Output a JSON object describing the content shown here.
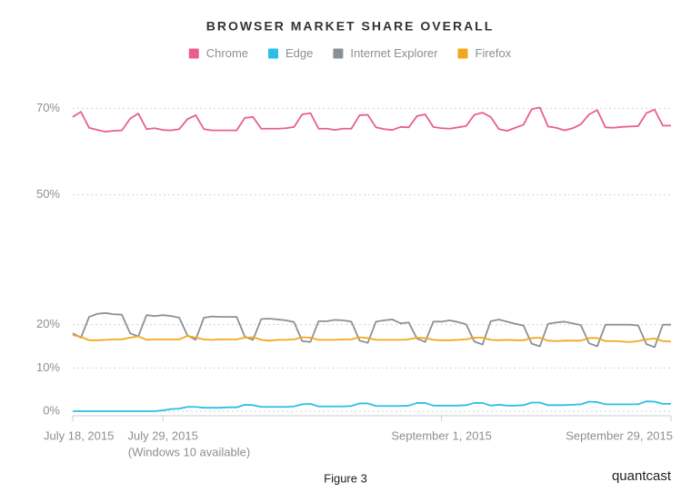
{
  "chart_data": {
    "type": "line",
    "title": "BROWSER MARKET SHARE OVERALL",
    "annotation": "(Windows 10 available)",
    "caption": "Figure 3",
    "brand": "quantcast",
    "x": [
      "2015-07-18",
      "2015-07-19",
      "2015-07-20",
      "2015-07-21",
      "2015-07-22",
      "2015-07-23",
      "2015-07-24",
      "2015-07-25",
      "2015-07-26",
      "2015-07-27",
      "2015-07-28",
      "2015-07-29",
      "2015-07-30",
      "2015-07-31",
      "2015-08-01",
      "2015-08-02",
      "2015-08-03",
      "2015-08-04",
      "2015-08-05",
      "2015-08-06",
      "2015-08-07",
      "2015-08-08",
      "2015-08-09",
      "2015-08-10",
      "2015-08-11",
      "2015-08-12",
      "2015-08-13",
      "2015-08-14",
      "2015-08-15",
      "2015-08-16",
      "2015-08-17",
      "2015-08-18",
      "2015-08-19",
      "2015-08-20",
      "2015-08-21",
      "2015-08-22",
      "2015-08-23",
      "2015-08-24",
      "2015-08-25",
      "2015-08-26",
      "2015-08-27",
      "2015-08-28",
      "2015-08-29",
      "2015-08-30",
      "2015-08-31",
      "2015-09-01",
      "2015-09-02",
      "2015-09-03",
      "2015-09-04",
      "2015-09-05",
      "2015-09-06",
      "2015-09-07",
      "2015-09-08",
      "2015-09-09",
      "2015-09-10",
      "2015-09-11",
      "2015-09-12",
      "2015-09-13",
      "2015-09-14",
      "2015-09-15",
      "2015-09-16",
      "2015-09-17",
      "2015-09-18",
      "2015-09-19",
      "2015-09-20",
      "2015-09-21",
      "2015-09-22",
      "2015-09-23",
      "2015-09-24",
      "2015-09-25",
      "2015-09-26",
      "2015-09-27",
      "2015-09-28",
      "2015-09-29"
    ],
    "series": [
      {
        "name": "Chrome",
        "color": "#e8608a",
        "values": [
          68.0,
          69.2,
          65.5,
          65.0,
          64.6,
          64.8,
          64.9,
          67.6,
          68.8,
          65.2,
          65.4,
          65.0,
          64.9,
          65.2,
          67.5,
          68.4,
          65.2,
          64.9,
          64.9,
          64.9,
          64.9,
          67.8,
          68.0,
          65.3,
          65.3,
          65.3,
          65.4,
          65.7,
          68.6,
          68.9,
          65.3,
          65.3,
          65.0,
          65.3,
          65.3,
          68.4,
          68.5,
          65.6,
          65.2,
          65.0,
          65.7,
          65.6,
          68.2,
          68.6,
          65.7,
          65.4,
          65.3,
          65.6,
          65.9,
          68.5,
          69.0,
          68.0,
          65.2,
          64.8,
          65.5,
          66.2,
          69.8,
          70.2,
          65.8,
          65.5,
          64.9,
          65.4,
          66.3,
          68.6,
          69.6,
          65.6,
          65.5,
          65.7,
          65.8,
          65.9,
          68.9,
          69.7,
          66.0,
          66.0
        ]
      },
      {
        "name": "Edge",
        "color": "#2bbfe6",
        "values": [
          0,
          0,
          0,
          0,
          0,
          0,
          0,
          0,
          0,
          0,
          0,
          0.2,
          0.5,
          0.6,
          1.0,
          1.0,
          0.8,
          0.8,
          0.8,
          0.9,
          0.9,
          1.5,
          1.4,
          1.0,
          1.0,
          1.0,
          1.0,
          1.1,
          1.6,
          1.7,
          1.1,
          1.1,
          1.1,
          1.1,
          1.2,
          1.8,
          1.8,
          1.2,
          1.2,
          1.2,
          1.2,
          1.3,
          1.9,
          1.9,
          1.3,
          1.3,
          1.3,
          1.3,
          1.4,
          1.9,
          1.9,
          1.3,
          1.5,
          1.3,
          1.3,
          1.4,
          2.0,
          2.0,
          1.4,
          1.4,
          1.4,
          1.5,
          1.6,
          2.2,
          2.1,
          1.6,
          1.6,
          1.6,
          1.6,
          1.6,
          2.3,
          2.2,
          1.7,
          1.7
        ]
      },
      {
        "name": "Internet Explorer",
        "color": "#8a9196",
        "values": [
          18.0,
          17.0,
          21.8,
          22.5,
          22.7,
          22.4,
          22.3,
          18.0,
          17.3,
          22.2,
          22.0,
          22.2,
          22.0,
          21.6,
          17.5,
          16.5,
          21.6,
          21.9,
          21.8,
          21.8,
          21.8,
          17.2,
          16.5,
          21.3,
          21.4,
          21.2,
          21.0,
          20.6,
          16.2,
          16.0,
          20.8,
          20.8,
          21.1,
          21.0,
          20.7,
          16.3,
          15.8,
          20.7,
          21.0,
          21.2,
          20.3,
          20.5,
          16.8,
          16.0,
          20.7,
          20.7,
          21.0,
          20.6,
          20.1,
          16.1,
          15.4,
          20.8,
          21.2,
          20.7,
          20.2,
          19.8,
          15.6,
          15.0,
          20.2,
          20.5,
          20.7,
          20.3,
          19.9,
          15.7,
          15.0,
          20.0,
          20.0,
          20.0,
          20.0,
          19.8,
          15.5,
          14.8,
          20.0,
          20.0
        ]
      },
      {
        "name": "Firefox",
        "color": "#f2a81d",
        "values": [
          17.6,
          17.2,
          16.4,
          16.4,
          16.5,
          16.6,
          16.6,
          17.0,
          17.3,
          16.5,
          16.6,
          16.6,
          16.6,
          16.6,
          17.4,
          17.0,
          16.6,
          16.5,
          16.6,
          16.6,
          16.6,
          17.0,
          17.1,
          16.5,
          16.3,
          16.5,
          16.5,
          16.6,
          17.1,
          17.0,
          16.5,
          16.5,
          16.5,
          16.6,
          16.6,
          17.1,
          16.9,
          16.5,
          16.5,
          16.5,
          16.5,
          16.6,
          17.0,
          16.9,
          16.5,
          16.4,
          16.4,
          16.5,
          16.6,
          17.0,
          17.0,
          16.5,
          16.4,
          16.5,
          16.4,
          16.4,
          16.9,
          17.0,
          16.3,
          16.2,
          16.3,
          16.3,
          16.3,
          16.9,
          16.9,
          16.2,
          16.2,
          16.1,
          16.0,
          16.2,
          16.6,
          16.8,
          16.2,
          16.1
        ]
      }
    ],
    "xlim": [
      "2015-07-18",
      "2015-09-29"
    ],
    "xticks": [
      {
        "value": "2015-07-18",
        "label": "July 18, 2015"
      },
      {
        "value": "2015-07-29",
        "label": "July 29, 2015"
      },
      {
        "value": "2015-09-01",
        "label": "September 1, 2015"
      },
      {
        "value": "2015-09-29",
        "label": "September 29, 2015"
      }
    ],
    "ylim": [
      0,
      75
    ],
    "yticks": [
      {
        "value": 0,
        "label": "0%"
      },
      {
        "value": 10,
        "label": "10%"
      },
      {
        "value": 20,
        "label": "20%"
      },
      {
        "value": 50,
        "label": "50%"
      },
      {
        "value": 70,
        "label": "70%"
      }
    ],
    "grid": true
  }
}
